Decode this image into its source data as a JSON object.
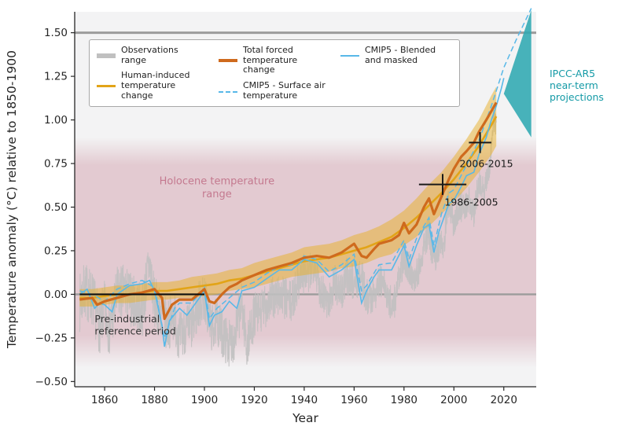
{
  "chart_data": {
    "type": "line",
    "title": "",
    "xlabel": "Year",
    "ylabel": "Temperature anomaly (°C) relative to 1850-1900",
    "xlim": [
      1848,
      2033
    ],
    "ylim": [
      -0.53,
      1.62
    ],
    "xticks": [
      1860,
      1880,
      1900,
      1920,
      1940,
      1960,
      1980,
      2000,
      2020
    ],
    "yticks": [
      -0.5,
      -0.25,
      0.0,
      0.25,
      0.5,
      0.75,
      1.0,
      1.25,
      1.5
    ],
    "grid": false,
    "hlines": [
      {
        "y": 1.5,
        "width": 3
      },
      {
        "y": 0.0,
        "width": 2.4
      }
    ],
    "legend_position": "upper-left-inside",
    "legend": [
      {
        "label": "Observations range",
        "style": "gray-band"
      },
      {
        "label": "Human-induced temperature change",
        "style": "yellow-line"
      },
      {
        "label": "Total forced temperature change",
        "style": "orange-line"
      },
      {
        "label": "CMIP5 - Surface air temperature",
        "style": "blue-dashed"
      },
      {
        "label": "CMIP5 - Blended and masked",
        "style": "blue-line"
      }
    ],
    "colors": {
      "observations": "#c0c0c0",
      "human_line": "#e2a418",
      "human_band": "#e8b028",
      "total_forced": "#cf6a1d",
      "cmip5": "#58b8e8",
      "projection": "#2fa8b2",
      "holocene": "#b5566e",
      "holocene_text": "#c4798f",
      "axis": "#262626",
      "hline": "#9c9c9c",
      "annotation_text": "#333333",
      "projection_text": "#149aa6",
      "plot_bg": "#f3f3f4"
    },
    "holocene_band": {
      "solid_y0": -0.25,
      "solid_y1": 0.75,
      "fade_y0": -0.42,
      "fade_y1": 0.9
    },
    "reference_segment": {
      "y": 0.0,
      "x0": 1850,
      "x1": 1900
    },
    "series": {
      "observations": {
        "name": "Observations range",
        "anchors": [
          [
            1850,
            -0.05
          ],
          [
            1852,
            0.02
          ],
          [
            1855,
            -0.02
          ],
          [
            1858,
            -0.18
          ],
          [
            1860,
            -0.08
          ],
          [
            1862,
            -0.2
          ],
          [
            1865,
            0.0
          ],
          [
            1868,
            0.02
          ],
          [
            1870,
            -0.02
          ],
          [
            1872,
            -0.05
          ],
          [
            1875,
            -0.1
          ],
          [
            1877,
            0.1
          ],
          [
            1878,
            0.18
          ],
          [
            1880,
            -0.05
          ],
          [
            1883,
            -0.12
          ],
          [
            1885,
            -0.18
          ],
          [
            1888,
            -0.12
          ],
          [
            1890,
            -0.25
          ],
          [
            1892,
            -0.2
          ],
          [
            1895,
            -0.18
          ],
          [
            1898,
            -0.05
          ],
          [
            1900,
            -0.02
          ],
          [
            1903,
            -0.2
          ],
          [
            1905,
            -0.15
          ],
          [
            1908,
            -0.25
          ],
          [
            1910,
            -0.28
          ],
          [
            1912,
            -0.25
          ],
          [
            1915,
            -0.05
          ],
          [
            1917,
            -0.3
          ],
          [
            1920,
            -0.12
          ],
          [
            1923,
            -0.1
          ],
          [
            1925,
            -0.05
          ],
          [
            1928,
            -0.02
          ],
          [
            1930,
            0.0
          ],
          [
            1932,
            -0.02
          ],
          [
            1935,
            -0.05
          ],
          [
            1938,
            0.1
          ],
          [
            1940,
            0.12
          ],
          [
            1942,
            0.1
          ],
          [
            1944,
            0.2
          ],
          [
            1946,
            0.05
          ],
          [
            1950,
            -0.05
          ],
          [
            1952,
            0.08
          ],
          [
            1955,
            0.0
          ],
          [
            1957,
            0.1
          ],
          [
            1960,
            0.08
          ],
          [
            1963,
            0.1
          ],
          [
            1965,
            -0.02
          ],
          [
            1968,
            0.0
          ],
          [
            1970,
            0.08
          ],
          [
            1972,
            0.05
          ],
          [
            1974,
            -0.05
          ],
          [
            1976,
            -0.05
          ],
          [
            1978,
            0.08
          ],
          [
            1980,
            0.22
          ],
          [
            1982,
            0.15
          ],
          [
            1984,
            0.1
          ],
          [
            1986,
            0.15
          ],
          [
            1988,
            0.3
          ],
          [
            1990,
            0.35
          ],
          [
            1992,
            0.2
          ],
          [
            1994,
            0.28
          ],
          [
            1996,
            0.3
          ],
          [
            1998,
            0.55
          ],
          [
            2000,
            0.4
          ],
          [
            2002,
            0.5
          ],
          [
            2004,
            0.5
          ],
          [
            2006,
            0.55
          ],
          [
            2008,
            0.45
          ],
          [
            2010,
            0.65
          ],
          [
            2012,
            0.58
          ],
          [
            2014,
            0.7
          ],
          [
            2015,
            0.85
          ],
          [
            2016,
            1.02
          ],
          [
            2017,
            0.95
          ]
        ],
        "noise_amplitude_start": 0.17,
        "noise_amplitude_end": 0.08,
        "noise_seed": 7
      },
      "human_induced": {
        "name": "Human-induced temperature change",
        "x": [
          1850,
          1855,
          1860,
          1865,
          1870,
          1875,
          1880,
          1885,
          1890,
          1895,
          1900,
          1905,
          1910,
          1915,
          1920,
          1925,
          1930,
          1935,
          1940,
          1945,
          1950,
          1955,
          1960,
          1965,
          1970,
          1975,
          1980,
          1985,
          1990,
          1995,
          2000,
          2005,
          2010,
          2015,
          2017
        ],
        "y": [
          -0.02,
          -0.02,
          -0.01,
          0.0,
          0.0,
          0.01,
          0.02,
          0.02,
          0.03,
          0.04,
          0.05,
          0.06,
          0.08,
          0.09,
          0.11,
          0.13,
          0.15,
          0.17,
          0.19,
          0.2,
          0.21,
          0.23,
          0.25,
          0.27,
          0.3,
          0.33,
          0.38,
          0.44,
          0.51,
          0.58,
          0.66,
          0.75,
          0.85,
          0.97,
          1.02
        ],
        "band_halfwidth": [
          0.05,
          0.05,
          0.05,
          0.05,
          0.05,
          0.05,
          0.05,
          0.05,
          0.05,
          0.06,
          0.06,
          0.06,
          0.06,
          0.06,
          0.07,
          0.07,
          0.07,
          0.07,
          0.08,
          0.08,
          0.08,
          0.08,
          0.09,
          0.09,
          0.09,
          0.1,
          0.1,
          0.11,
          0.12,
          0.12,
          0.13,
          0.14,
          0.15,
          0.17,
          0.17
        ]
      },
      "total_forced": {
        "name": "Total forced temperature change",
        "points": [
          [
            1850,
            -0.03
          ],
          [
            1855,
            -0.02
          ],
          [
            1857,
            -0.06
          ],
          [
            1860,
            -0.04
          ],
          [
            1865,
            -0.02
          ],
          [
            1870,
            0.0
          ],
          [
            1875,
            0.01
          ],
          [
            1880,
            0.03
          ],
          [
            1883,
            -0.02
          ],
          [
            1884,
            -0.14
          ],
          [
            1887,
            -0.06
          ],
          [
            1890,
            -0.03
          ],
          [
            1895,
            -0.03
          ],
          [
            1900,
            0.03
          ],
          [
            1902,
            -0.04
          ],
          [
            1904,
            -0.05
          ],
          [
            1907,
            0.0
          ],
          [
            1910,
            0.04
          ],
          [
            1913,
            0.06
          ],
          [
            1915,
            0.08
          ],
          [
            1920,
            0.11
          ],
          [
            1925,
            0.14
          ],
          [
            1930,
            0.16
          ],
          [
            1935,
            0.18
          ],
          [
            1940,
            0.21
          ],
          [
            1945,
            0.22
          ],
          [
            1950,
            0.21
          ],
          [
            1955,
            0.24
          ],
          [
            1958,
            0.27
          ],
          [
            1960,
            0.29
          ],
          [
            1963,
            0.22
          ],
          [
            1965,
            0.21
          ],
          [
            1968,
            0.26
          ],
          [
            1970,
            0.29
          ],
          [
            1975,
            0.31
          ],
          [
            1978,
            0.34
          ],
          [
            1980,
            0.41
          ],
          [
            1982,
            0.35
          ],
          [
            1985,
            0.4
          ],
          [
            1988,
            0.5
          ],
          [
            1990,
            0.55
          ],
          [
            1992,
            0.46
          ],
          [
            1995,
            0.56
          ],
          [
            1998,
            0.66
          ],
          [
            2000,
            0.72
          ],
          [
            2003,
            0.79
          ],
          [
            2005,
            0.82
          ],
          [
            2008,
            0.87
          ],
          [
            2010,
            0.93
          ],
          [
            2013,
            1.0
          ],
          [
            2015,
            1.05
          ],
          [
            2017,
            1.1
          ]
        ]
      },
      "cmip5_blended": {
        "name": "CMIP5 - Blended and masked",
        "points": [
          [
            1850,
            0.0
          ],
          [
            1853,
            0.03
          ],
          [
            1856,
            -0.08
          ],
          [
            1858,
            -0.05
          ],
          [
            1860,
            -0.06
          ],
          [
            1863,
            -0.1
          ],
          [
            1865,
            0.0
          ],
          [
            1870,
            0.05
          ],
          [
            1875,
            0.06
          ],
          [
            1878,
            0.08
          ],
          [
            1880,
            0.02
          ],
          [
            1883,
            -0.18
          ],
          [
            1884,
            -0.3
          ],
          [
            1886,
            -0.15
          ],
          [
            1890,
            -0.08
          ],
          [
            1893,
            -0.12
          ],
          [
            1895,
            -0.08
          ],
          [
            1900,
            0.02
          ],
          [
            1902,
            -0.18
          ],
          [
            1904,
            -0.12
          ],
          [
            1907,
            -0.1
          ],
          [
            1910,
            -0.04
          ],
          [
            1913,
            -0.08
          ],
          [
            1915,
            0.02
          ],
          [
            1920,
            0.04
          ],
          [
            1925,
            0.09
          ],
          [
            1930,
            0.14
          ],
          [
            1935,
            0.14
          ],
          [
            1940,
            0.2
          ],
          [
            1945,
            0.18
          ],
          [
            1950,
            0.1
          ],
          [
            1955,
            0.14
          ],
          [
            1960,
            0.2
          ],
          [
            1963,
            -0.05
          ],
          [
            1965,
            0.02
          ],
          [
            1968,
            0.1
          ],
          [
            1970,
            0.14
          ],
          [
            1975,
            0.14
          ],
          [
            1980,
            0.28
          ],
          [
            1982,
            0.16
          ],
          [
            1985,
            0.28
          ],
          [
            1988,
            0.38
          ],
          [
            1990,
            0.4
          ],
          [
            1992,
            0.24
          ],
          [
            1994,
            0.36
          ],
          [
            1996,
            0.44
          ],
          [
            1998,
            0.52
          ],
          [
            2000,
            0.54
          ],
          [
            2003,
            0.62
          ],
          [
            2005,
            0.68
          ],
          [
            2008,
            0.7
          ],
          [
            2010,
            0.8
          ],
          [
            2013,
            0.9
          ],
          [
            2015,
            1.0
          ],
          [
            2017,
            1.08
          ],
          [
            2019,
            1.18
          ],
          [
            2020,
            1.24
          ]
        ]
      },
      "cmip5_sat": {
        "name": "CMIP5 - Surface air temperature",
        "points": [
          [
            1850,
            0.02
          ],
          [
            1855,
            0.0
          ],
          [
            1860,
            -0.04
          ],
          [
            1865,
            0.03
          ],
          [
            1870,
            0.06
          ],
          [
            1875,
            0.08
          ],
          [
            1880,
            0.04
          ],
          [
            1884,
            -0.25
          ],
          [
            1888,
            -0.08
          ],
          [
            1890,
            -0.05
          ],
          [
            1895,
            -0.05
          ],
          [
            1900,
            0.04
          ],
          [
            1902,
            -0.14
          ],
          [
            1905,
            -0.08
          ],
          [
            1910,
            -0.02
          ],
          [
            1915,
            0.04
          ],
          [
            1920,
            0.07
          ],
          [
            1925,
            0.12
          ],
          [
            1930,
            0.16
          ],
          [
            1935,
            0.17
          ],
          [
            1940,
            0.22
          ],
          [
            1945,
            0.2
          ],
          [
            1950,
            0.13
          ],
          [
            1955,
            0.17
          ],
          [
            1960,
            0.23
          ],
          [
            1963,
            0.02
          ],
          [
            1965,
            0.05
          ],
          [
            1970,
            0.17
          ],
          [
            1975,
            0.18
          ],
          [
            1980,
            0.31
          ],
          [
            1982,
            0.2
          ],
          [
            1985,
            0.32
          ],
          [
            1990,
            0.44
          ],
          [
            1992,
            0.28
          ],
          [
            1995,
            0.46
          ],
          [
            1998,
            0.58
          ],
          [
            2000,
            0.6
          ],
          [
            2005,
            0.74
          ],
          [
            2010,
            0.88
          ],
          [
            2015,
            1.08
          ],
          [
            2020,
            1.3
          ],
          [
            2025,
            1.46
          ],
          [
            2031,
            1.64
          ]
        ]
      }
    },
    "error_bars": [
      {
        "label": "1986-2005",
        "x0": 1986,
        "x1": 2005,
        "y": 0.63,
        "tick_halfheight": 0.06,
        "label_x": 2007,
        "label_y": 0.51
      },
      {
        "label": "2006-2015",
        "x0": 2006,
        "x1": 2015,
        "y": 0.87,
        "tick_halfheight": 0.06,
        "label_x": 2013,
        "label_y": 0.73
      }
    ],
    "annotations": [
      {
        "id": "holocene",
        "text": "Holocene temperature\nrange",
        "x": 1905,
        "y": 0.63,
        "anchor": "middle",
        "color_key": "holocene_text",
        "size": 13
      },
      {
        "id": "preindustrial",
        "text": "Pre-industrial\nreference period",
        "x": 1856,
        "y": -0.16,
        "anchor": "start",
        "color_key": "annotation_text",
        "size": 12.5
      }
    ],
    "projection": {
      "label": "IPCC-AR5 near-term projections",
      "polygon": [
        [
          2020,
          1.15
        ],
        [
          2031,
          1.63
        ],
        [
          2031,
          0.9
        ]
      ]
    }
  }
}
